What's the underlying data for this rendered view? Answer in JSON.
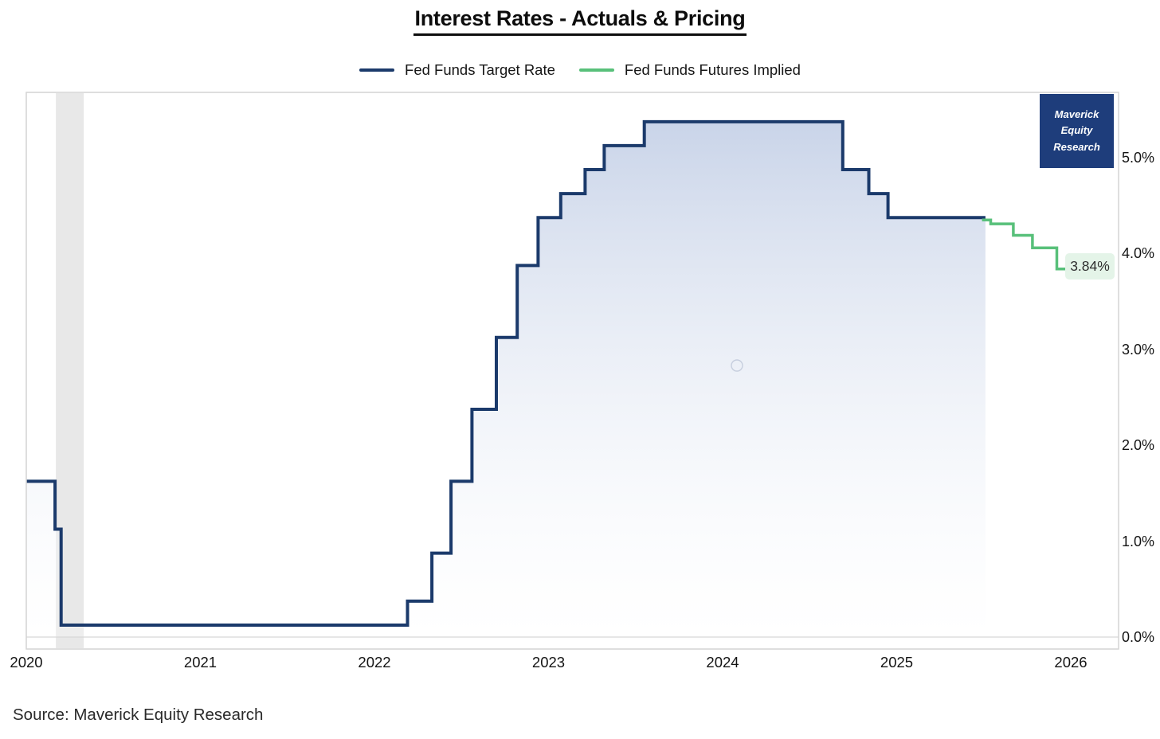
{
  "title": {
    "text": "Interest Rates - Actuals & Pricing"
  },
  "legend": {
    "items": [
      {
        "label": "Fed Funds Target Rate",
        "color": "#1b3a6b"
      },
      {
        "label": "Fed Funds Futures Implied",
        "color": "#58c07a"
      }
    ]
  },
  "badge": {
    "lines": [
      "Maverick",
      "Equity",
      "Research"
    ],
    "bg_color": "#1e3d7b",
    "text_color": "#ffffff"
  },
  "annotation": {
    "label": "3.84%",
    "bg_color": "#e4f4e8"
  },
  "source_note": "Source: Maverick Equity Research",
  "chart_data": {
    "type": "line",
    "subtype": "step",
    "title": "Interest Rates - Actuals & Pricing",
    "xlabel": "",
    "ylabel": "",
    "grid": false,
    "legend_position": "top",
    "x_axis": {
      "range": [
        2020.0,
        2026.28
      ],
      "ticks": [
        {
          "v": 2020,
          "label": "2020"
        },
        {
          "v": 2021,
          "label": "2021"
        },
        {
          "v": 2022,
          "label": "2022"
        },
        {
          "v": 2023,
          "label": "2023"
        },
        {
          "v": 2024,
          "label": "2024"
        },
        {
          "v": 2025,
          "label": "2025"
        },
        {
          "v": 2026,
          "label": "2026"
        }
      ]
    },
    "y_axis": {
      "range": [
        -0.13,
        5.68
      ],
      "unit": "percent",
      "ticks": [
        {
          "v": 0,
          "label": "0.0%"
        },
        {
          "v": 1,
          "label": "1.0%"
        },
        {
          "v": 2,
          "label": "2.0%"
        },
        {
          "v": 3,
          "label": "3.0%"
        },
        {
          "v": 4,
          "label": "4.0%"
        },
        {
          "v": 5,
          "label": "5.0%"
        }
      ]
    },
    "shaded_band": {
      "from": 2020.17,
      "to": 2020.33,
      "color": "#e6e6e6",
      "note": "recession band"
    },
    "series": [
      {
        "name": "Fed Funds Target Rate",
        "color": "#1b3a6b",
        "width": 4,
        "fill": "gradient-blue",
        "points": [
          [
            2020.0,
            1.625
          ],
          [
            2020.165,
            1.125
          ],
          [
            2020.2,
            0.125
          ],
          [
            2022.19,
            0.375
          ],
          [
            2022.33,
            0.875
          ],
          [
            2022.44,
            1.625
          ],
          [
            2022.56,
            2.375
          ],
          [
            2022.7,
            3.125
          ],
          [
            2022.82,
            3.875
          ],
          [
            2022.94,
            4.375
          ],
          [
            2023.07,
            4.625
          ],
          [
            2023.21,
            4.875
          ],
          [
            2023.32,
            5.125
          ],
          [
            2023.55,
            5.375
          ],
          [
            2024.69,
            4.875
          ],
          [
            2024.84,
            4.625
          ],
          [
            2024.95,
            4.375
          ]
        ],
        "end_x": 2025.51
      },
      {
        "name": "Fed Funds Futures Implied",
        "color": "#58c07a",
        "width": 3.5,
        "fill": null,
        "points": [
          [
            2025.49,
            4.35
          ],
          [
            2025.54,
            4.31
          ],
          [
            2025.67,
            4.19
          ],
          [
            2025.78,
            4.06
          ],
          [
            2025.92,
            3.84
          ]
        ],
        "end_x": 2026.0,
        "end_label": "3.84%"
      }
    ]
  }
}
